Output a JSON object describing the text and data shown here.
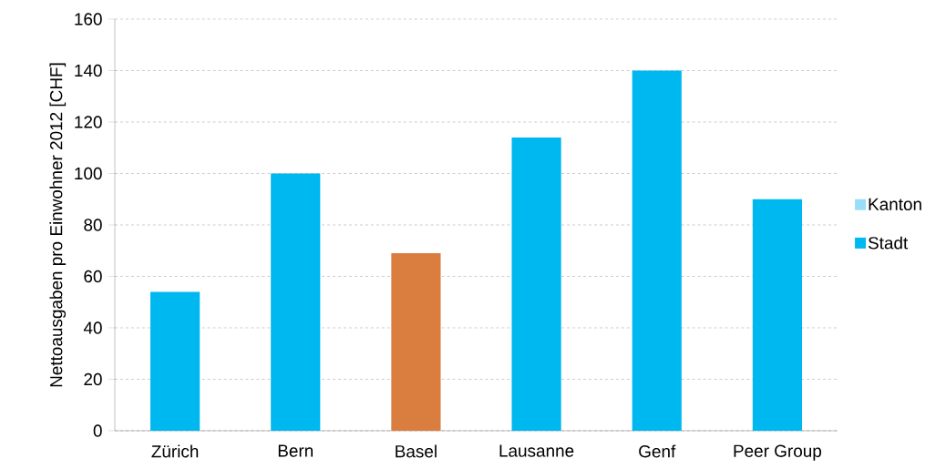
{
  "chart_data": {
    "type": "bar",
    "ylabel": "Nettoausgaben pro Einwohner 2012 [CHF]",
    "categories": [
      "Zürich",
      "Bern",
      "Basel",
      "Lausanne",
      "Genf",
      "Peer Group"
    ],
    "series": [
      {
        "name": "Stadt",
        "color": "#00b8f0",
        "colors": [
          "#00b8f0",
          "#00b8f0",
          "#d97e3e",
          "#00b8f0",
          "#00b8f0",
          "#00b8f0"
        ],
        "values": [
          54,
          100,
          69,
          114,
          140,
          90
        ]
      },
      {
        "name": "Kanton",
        "color": "#99ddf8",
        "values": [
          null,
          null,
          null,
          null,
          null,
          null
        ]
      }
    ],
    "ylim": [
      0,
      160
    ],
    "yticks": [
      0,
      20,
      40,
      60,
      80,
      100,
      120,
      140,
      160
    ],
    "grid": "y",
    "legend": "right"
  }
}
